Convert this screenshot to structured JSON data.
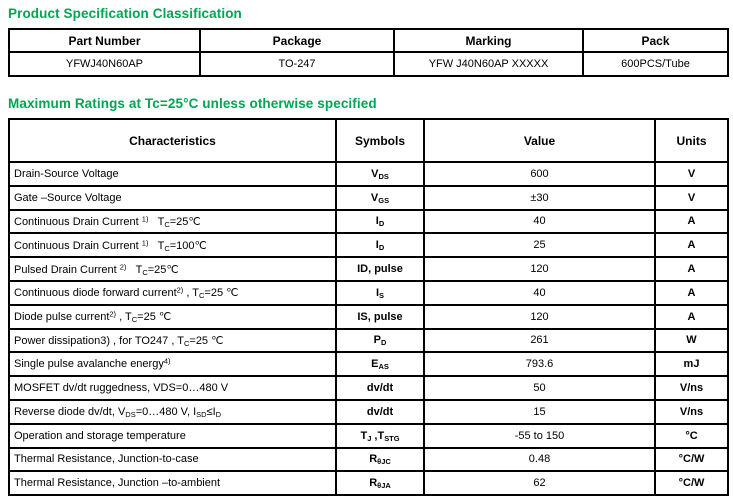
{
  "colors": {
    "heading_green": "#00A651",
    "table_border": "#000000"
  },
  "section1": {
    "title": "Product Specification Classification",
    "table": {
      "headers": [
        "Part Number",
        "Package",
        "Marking",
        "Pack"
      ],
      "rows": [
        [
          "YFWJ40N60AP",
          "TO-247",
          "YFW J40N60AP XXXXX",
          "600PCS/Tube"
        ]
      ]
    }
  },
  "section2": {
    "title": "Maximum Ratings at Tc=25°C unless otherwise specified",
    "table": {
      "headers": [
        "Characteristics",
        "Symbols",
        "Value",
        "Units"
      ],
      "rows": [
        {
          "characteristic": "Drain-Source Voltage",
          "symbol": "V_{DS}",
          "value": "600",
          "unit": "V"
        },
        {
          "characteristic": "Gate –Source Voltage",
          "symbol": "V_{GS}",
          "value": "±30",
          "unit": "V"
        },
        {
          "characteristic": "Continuous Drain Current ^{1)}   T_{C}=25℃",
          "symbol": "I_{D}",
          "value": "40",
          "unit": "A"
        },
        {
          "characteristic": "Continuous Drain Current ^{1)}   T_{C}=100℃",
          "symbol": "I_{D}",
          "value": "25",
          "unit": "A"
        },
        {
          "characteristic": "Pulsed Drain Current ^{2)}   T_{C}=25℃",
          "symbol": "ID, pulse",
          "value": "120",
          "unit": "A"
        },
        {
          "characteristic": "Continuous diode forward current^{2)} , T_{C}=25 ℃",
          "symbol": "I_{S}",
          "value": "40",
          "unit": "A"
        },
        {
          "characteristic": "Diode pulse current^{2)} , T_{C}=25 ℃",
          "symbol": "IS, pulse",
          "value": "120",
          "unit": "A"
        },
        {
          "characteristic": "Power dissipation3) , for TO247 , T_{C}=25 ℃",
          "symbol": "P_{D}",
          "value": "261",
          "unit": "W"
        },
        {
          "characteristic": "Single pulse avalanche energy^{4)}",
          "symbol": "E_{AS}",
          "value": "793.6",
          "unit": "mJ"
        },
        {
          "characteristic": "MOSFET dv/dt ruggedness, VDS=0…480 V",
          "symbol": "dv/dt",
          "value": "50",
          "unit": "V/ns"
        },
        {
          "characteristic": "Reverse diode dv/dt, V_{DS}=0…480 V, I_{SD}≤I_{D}",
          "symbol": "dv/dt",
          "value": "15",
          "unit": "V/ns"
        },
        {
          "characteristic": "Operation and storage temperature",
          "symbol": "T_{J} ,T_{STG}",
          "value": "-55 to 150",
          "unit": "°C"
        },
        {
          "characteristic": "Thermal Resistance, Junction-to-case",
          "symbol": "R_{θJC}",
          "value": "0.48",
          "unit": "°C/W"
        },
        {
          "characteristic": "Thermal Resistance, Junction –to-ambient",
          "symbol": "R_{θJA}",
          "value": "62",
          "unit": "°C/W"
        }
      ]
    }
  }
}
